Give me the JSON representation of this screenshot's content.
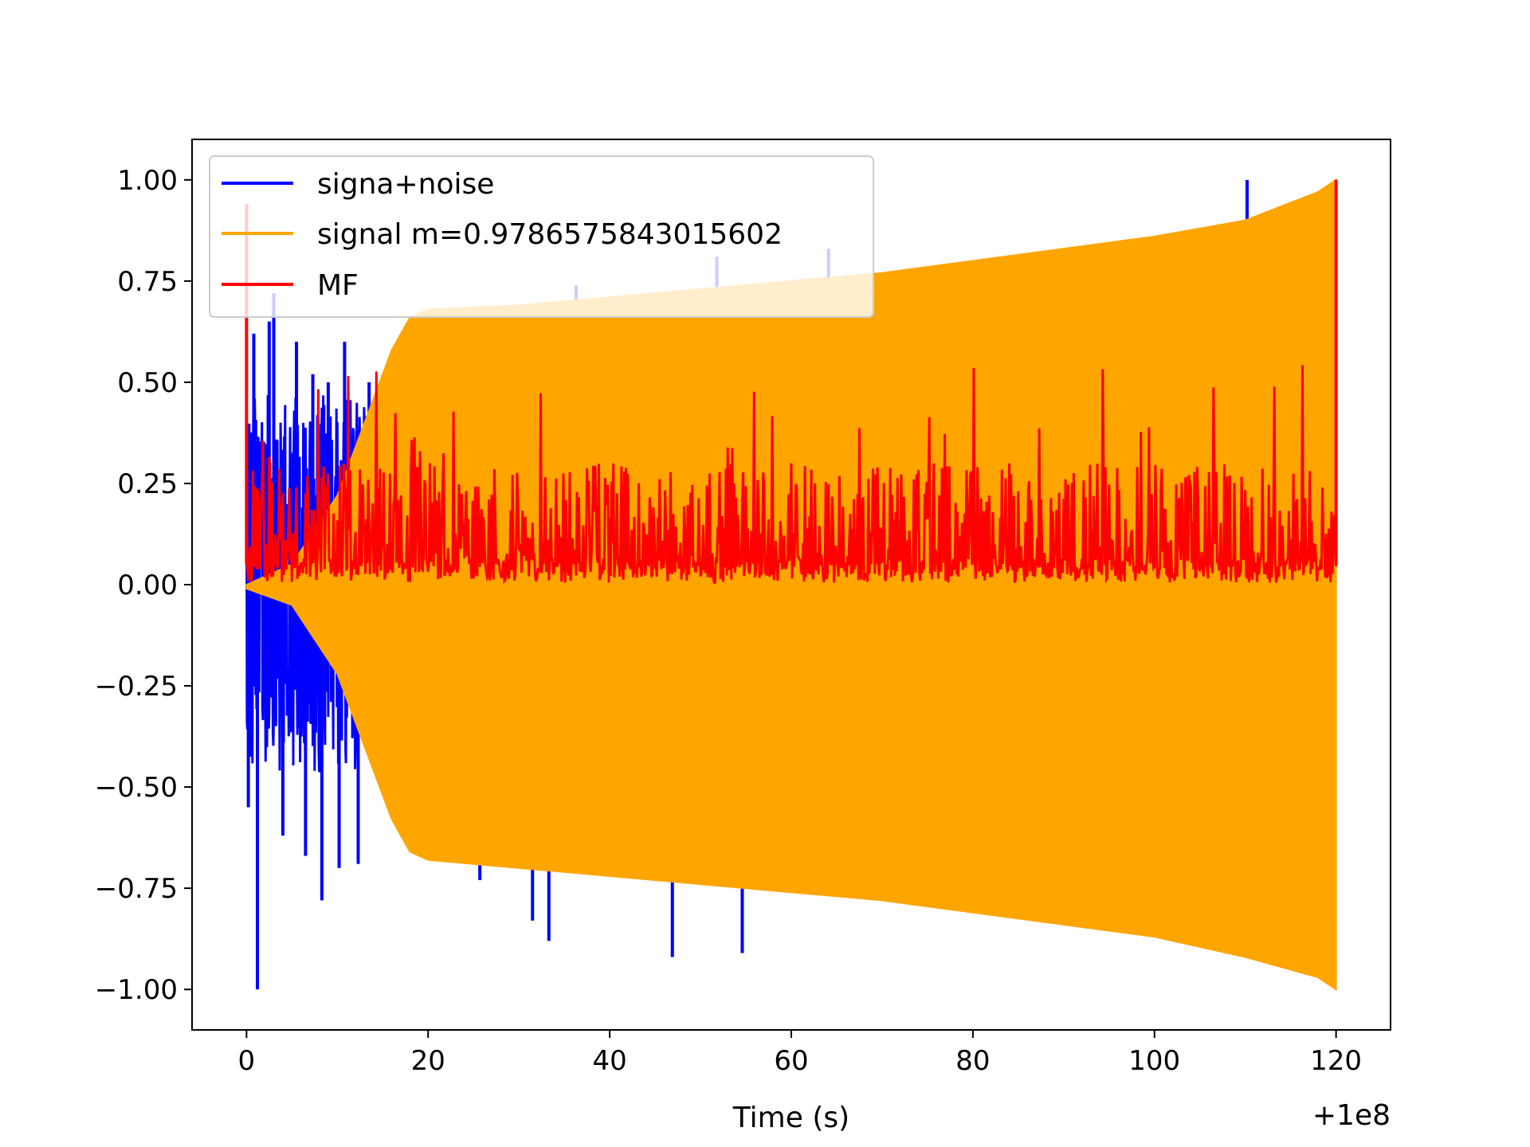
{
  "chart_data": {
    "type": "line",
    "title": "",
    "xlabel": "Time (s)",
    "ylabel": "",
    "x_offset_label": "+1e8",
    "xlim": [
      -6,
      126
    ],
    "ylim": [
      -1.1,
      1.1
    ],
    "x_ticks": [
      0,
      20,
      40,
      60,
      80,
      100,
      120
    ],
    "x_tick_labels": [
      "0",
      "20",
      "40",
      "60",
      "80",
      "100",
      "120"
    ],
    "y_ticks": [
      1.0,
      0.75,
      0.5,
      0.25,
      0.0,
      -0.25,
      -0.5,
      -0.75,
      -1.0
    ],
    "y_tick_labels": [
      "1.00",
      "0.75",
      "0.50",
      "0.25",
      "0.00",
      "−0.25",
      "−0.50",
      "−0.75",
      "−1.00"
    ],
    "grid": false,
    "legend_position": "top-left",
    "series": [
      {
        "name": "signa+noise",
        "color": "#0000ff",
        "description_points": {
          "spikes_x": [
            0.2,
            0.8,
            1.2,
            2.5,
            3.0,
            4.0,
            5.5,
            6.5,
            7.3,
            8.3,
            9.0,
            10.2,
            10.8,
            12.3,
            13.5,
            25.7,
            31.5,
            33.3,
            36.3,
            46.9,
            51.8,
            54.6,
            64.1,
            110.2
          ],
          "spikes_y": [
            -0.55,
            0.62,
            -1.0,
            0.65,
            0.72,
            -0.62,
            0.6,
            -0.67,
            0.52,
            -0.78,
            0.5,
            -0.7,
            0.6,
            -0.69,
            0.5,
            -0.73,
            -0.83,
            -0.88,
            0.74,
            -0.92,
            0.81,
            -0.91,
            0.83,
            1.0
          ]
        }
      },
      {
        "name": "signal m=0.9786575843015602",
        "color": "#ffa500",
        "envelope": {
          "x": [
            0,
            5,
            10,
            13,
            16,
            18,
            20,
            30,
            40,
            50,
            60,
            70,
            80,
            90,
            100,
            110,
            118,
            120
          ],
          "upper": [
            0.0,
            0.05,
            0.22,
            0.4,
            0.58,
            0.66,
            0.68,
            0.69,
            0.71,
            0.73,
            0.75,
            0.77,
            0.8,
            0.83,
            0.86,
            0.9,
            0.97,
            1.0
          ],
          "lower": [
            -0.01,
            -0.05,
            -0.22,
            -0.4,
            -0.58,
            -0.66,
            -0.68,
            -0.7,
            -0.72,
            -0.74,
            -0.76,
            -0.78,
            -0.81,
            -0.84,
            -0.87,
            -0.92,
            -0.97,
            -1.0
          ]
        }
      },
      {
        "name": "MF",
        "color": "#ff0000",
        "band": {
          "x_start": 0,
          "x_end": 120,
          "low": 0.0,
          "typical_high": 0.28,
          "peak_x": [
            0,
            120
          ],
          "peak_y": [
            0.94,
            1.0
          ]
        }
      }
    ]
  },
  "legend": {
    "items": [
      {
        "label": "signa+noise",
        "color": "#0000ff"
      },
      {
        "label": "signal m=0.9786575843015602",
        "color": "#ffa500"
      },
      {
        "label": "MF",
        "color": "#ff0000"
      }
    ]
  }
}
